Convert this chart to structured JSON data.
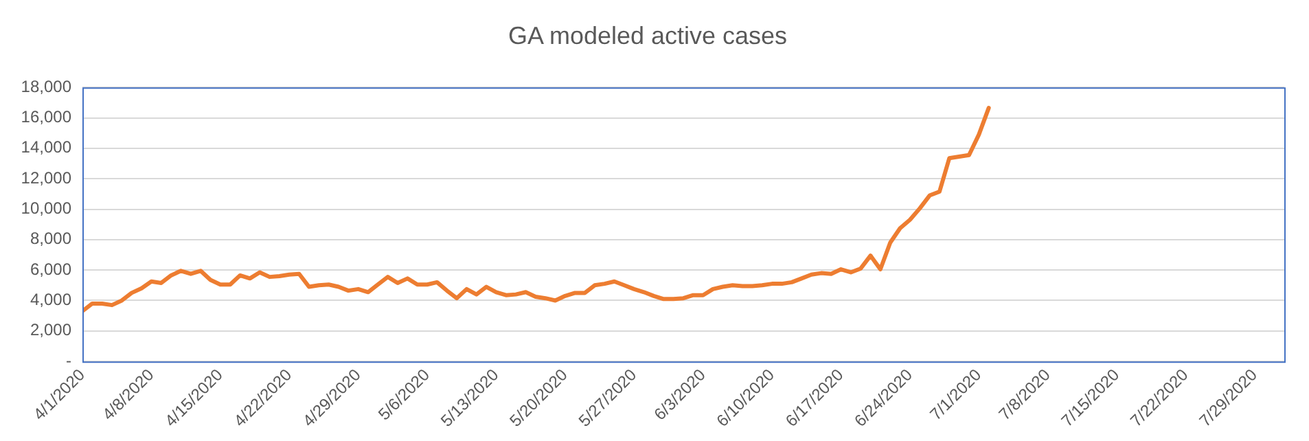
{
  "chart_data": {
    "type": "line",
    "title": "GA modeled active cases",
    "x": [
      "2020-04-01",
      "2020-04-02",
      "2020-04-03",
      "2020-04-04",
      "2020-04-05",
      "2020-04-06",
      "2020-04-07",
      "2020-04-08",
      "2020-04-09",
      "2020-04-10",
      "2020-04-11",
      "2020-04-12",
      "2020-04-13",
      "2020-04-14",
      "2020-04-15",
      "2020-04-16",
      "2020-04-17",
      "2020-04-18",
      "2020-04-19",
      "2020-04-20",
      "2020-04-21",
      "2020-04-22",
      "2020-04-23",
      "2020-04-24",
      "2020-04-25",
      "2020-04-26",
      "2020-04-27",
      "2020-04-28",
      "2020-04-29",
      "2020-04-30",
      "2020-05-01",
      "2020-05-02",
      "2020-05-03",
      "2020-05-04",
      "2020-05-05",
      "2020-05-06",
      "2020-05-07",
      "2020-05-08",
      "2020-05-09",
      "2020-05-10",
      "2020-05-11",
      "2020-05-12",
      "2020-05-13",
      "2020-05-14",
      "2020-05-15",
      "2020-05-16",
      "2020-05-17",
      "2020-05-18",
      "2020-05-19",
      "2020-05-20",
      "2020-05-21",
      "2020-05-22",
      "2020-05-23",
      "2020-05-24",
      "2020-05-25",
      "2020-05-26",
      "2020-05-27",
      "2020-05-28",
      "2020-05-29",
      "2020-05-30",
      "2020-05-31",
      "2020-06-01",
      "2020-06-02",
      "2020-06-03",
      "2020-06-04",
      "2020-06-05",
      "2020-06-06",
      "2020-06-07",
      "2020-06-08",
      "2020-06-09",
      "2020-06-10",
      "2020-06-11",
      "2020-06-12",
      "2020-06-13",
      "2020-06-14",
      "2020-06-15",
      "2020-06-16",
      "2020-06-17",
      "2020-06-18",
      "2020-06-19",
      "2020-06-20",
      "2020-06-21",
      "2020-06-22",
      "2020-06-23",
      "2020-06-24",
      "2020-06-25",
      "2020-06-26",
      "2020-06-27",
      "2020-06-28",
      "2020-06-29",
      "2020-06-30",
      "2020-07-01",
      "2020-07-02"
    ],
    "series": [
      {
        "color": "#ed7d31",
        "values": [
          3300,
          3800,
          3800,
          3700,
          4000,
          4500,
          4800,
          5250,
          5150,
          5650,
          5950,
          5750,
          5950,
          5350,
          5050,
          5050,
          5650,
          5450,
          5850,
          5550,
          5600,
          5700,
          5750,
          4900,
          5000,
          5050,
          4900,
          4650,
          4750,
          4550,
          5050,
          5550,
          5150,
          5450,
          5050,
          5050,
          5200,
          4650,
          4150,
          4750,
          4400,
          4900,
          4550,
          4350,
          4400,
          4550,
          4250,
          4150,
          4000,
          4300,
          4500,
          4500,
          5000,
          5100,
          5250,
          5000,
          4750,
          4550,
          4300,
          4100,
          4100,
          4150,
          4350,
          4350,
          4750,
          4900,
          5000,
          4950,
          4950,
          5000,
          5100,
          5100,
          5200,
          5450,
          5700,
          5800,
          5750,
          6050,
          5850,
          6100,
          6950,
          6050,
          7800,
          8750,
          9300,
          10050,
          10900,
          11150,
          13350,
          13450,
          13550,
          14900,
          16650
        ]
      }
    ],
    "xlim": [
      "2020-04-01",
      "2020-08-01"
    ],
    "xticks": [
      {
        "value": "2020-04-01",
        "label": "4/1/2020"
      },
      {
        "value": "2020-04-08",
        "label": "4/8/2020"
      },
      {
        "value": "2020-04-15",
        "label": "4/15/2020"
      },
      {
        "value": "2020-04-22",
        "label": "4/22/2020"
      },
      {
        "value": "2020-04-29",
        "label": "4/29/2020"
      },
      {
        "value": "2020-05-06",
        "label": "5/6/2020"
      },
      {
        "value": "2020-05-13",
        "label": "5/13/2020"
      },
      {
        "value": "2020-05-20",
        "label": "5/20/2020"
      },
      {
        "value": "2020-05-27",
        "label": "5/27/2020"
      },
      {
        "value": "2020-06-03",
        "label": "6/3/2020"
      },
      {
        "value": "2020-06-10",
        "label": "6/10/2020"
      },
      {
        "value": "2020-06-17",
        "label": "6/17/2020"
      },
      {
        "value": "2020-06-24",
        "label": "6/24/2020"
      },
      {
        "value": "2020-07-01",
        "label": "7/1/2020"
      },
      {
        "value": "2020-07-08",
        "label": "7/8/2020"
      },
      {
        "value": "2020-07-15",
        "label": "7/15/2020"
      },
      {
        "value": "2020-07-22",
        "label": "7/22/2020"
      },
      {
        "value": "2020-07-29",
        "label": "7/29/2020"
      }
    ],
    "ylim": [
      0,
      18000
    ],
    "yticks": [
      {
        "value": 0,
        "label": "-"
      },
      {
        "value": 2000,
        "label": "2,000"
      },
      {
        "value": 4000,
        "label": "4,000"
      },
      {
        "value": 6000,
        "label": "6,000"
      },
      {
        "value": 8000,
        "label": "8,000"
      },
      {
        "value": 10000,
        "label": "10,000"
      },
      {
        "value": 12000,
        "label": "12,000"
      },
      {
        "value": 14000,
        "label": "14,000"
      },
      {
        "value": 16000,
        "label": "16,000"
      },
      {
        "value": 18000,
        "label": "18,000"
      }
    ],
    "grid": "y",
    "legend": false,
    "marker": "none",
    "line_style": "solid"
  }
}
